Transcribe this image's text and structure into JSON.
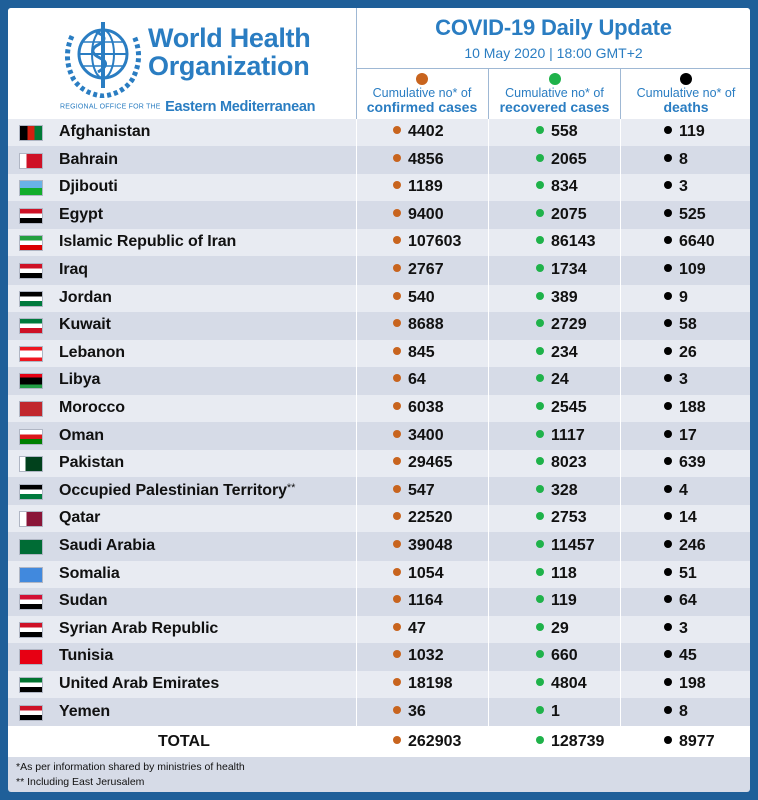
{
  "header": {
    "org_line1": "World Health",
    "org_line2": "Organization",
    "region_prefix": "REGIONAL OFFICE FOR THE",
    "region_name": "Eastern Mediterranean",
    "title": "COVID-19 Daily Update",
    "subtitle": "10 May 2020 | 18:00 GMT+2"
  },
  "columns": [
    {
      "line1": "Cumulative no* of",
      "line2": "confirmed cases",
      "dot_color": "#c8641e"
    },
    {
      "line1": "Cumulative no* of",
      "line2": "recovered cases",
      "dot_color": "#1fb24a"
    },
    {
      "line1": "Cumulative no* of",
      "line2": "deaths",
      "dot_color": "#000000"
    }
  ],
  "rows": [
    {
      "country": "Afghanistan",
      "confirmed": "4402",
      "recovered": "558",
      "deaths": "119"
    },
    {
      "country": "Bahrain",
      "confirmed": "4856",
      "recovered": "2065",
      "deaths": "8"
    },
    {
      "country": "Djibouti",
      "confirmed": "1189",
      "recovered": "834",
      "deaths": "3"
    },
    {
      "country": "Egypt",
      "confirmed": "9400",
      "recovered": "2075",
      "deaths": "525"
    },
    {
      "country": "Islamic Republic of Iran",
      "confirmed": "107603",
      "recovered": "86143",
      "deaths": "6640"
    },
    {
      "country": "Iraq",
      "confirmed": "2767",
      "recovered": "1734",
      "deaths": "109"
    },
    {
      "country": "Jordan",
      "confirmed": "540",
      "recovered": "389",
      "deaths": "9"
    },
    {
      "country": "Kuwait",
      "confirmed": "8688",
      "recovered": "2729",
      "deaths": "58"
    },
    {
      "country": "Lebanon",
      "confirmed": "845",
      "recovered": "234",
      "deaths": "26"
    },
    {
      "country": "Libya",
      "confirmed": "64",
      "recovered": "24",
      "deaths": "3"
    },
    {
      "country": "Morocco",
      "confirmed": "6038",
      "recovered": "2545",
      "deaths": "188"
    },
    {
      "country": "Oman",
      "confirmed": "3400",
      "recovered": "1117",
      "deaths": "17"
    },
    {
      "country": "Pakistan",
      "confirmed": "29465",
      "recovered": "8023",
      "deaths": "639"
    },
    {
      "country": "Occupied Palestinian Territory",
      "mark": "**",
      "confirmed": "547",
      "recovered": "328",
      "deaths": "4"
    },
    {
      "country": "Qatar",
      "confirmed": "22520",
      "recovered": "2753",
      "deaths": "14"
    },
    {
      "country": "Saudi Arabia",
      "confirmed": "39048",
      "recovered": "11457",
      "deaths": "246"
    },
    {
      "country": "Somalia",
      "confirmed": "1054",
      "recovered": "118",
      "deaths": "51"
    },
    {
      "country": "Sudan",
      "confirmed": "1164",
      "recovered": "119",
      "deaths": "64"
    },
    {
      "country": "Syrian Arab Republic",
      "confirmed": "47",
      "recovered": "29",
      "deaths": "3"
    },
    {
      "country": "Tunisia",
      "confirmed": "1032",
      "recovered": "660",
      "deaths": "45"
    },
    {
      "country": "United Arab Emirates",
      "confirmed": "18198",
      "recovered": "4804",
      "deaths": "198"
    },
    {
      "country": "Yemen",
      "confirmed": "36",
      "recovered": "1",
      "deaths": "8"
    }
  ],
  "total": {
    "label": "TOTAL",
    "confirmed": "262903",
    "recovered": "128739",
    "deaths": "8977"
  },
  "footnotes": [
    "*As per information shared by ministries of health",
    "** Including East Jerusalem"
  ],
  "colors": {
    "brand_blue": "#2a7dc2",
    "confirmed": "#c8641e",
    "recovered": "#1fb24a",
    "deaths": "#000000",
    "border": "#1f5f99"
  }
}
